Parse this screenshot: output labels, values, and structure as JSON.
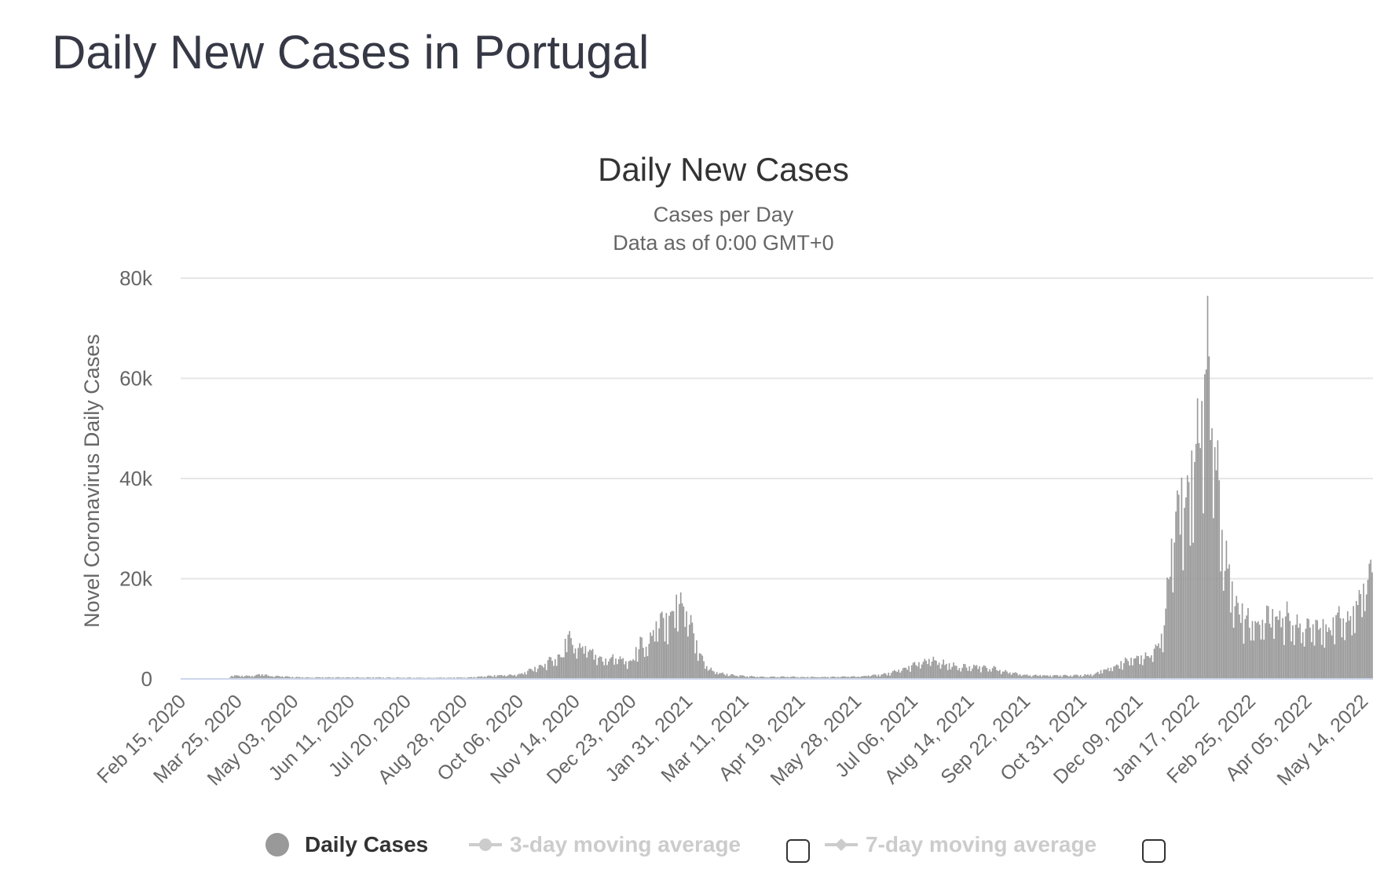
{
  "page": {
    "title": "Daily New Cases in Portugal"
  },
  "colors": {
    "bar": "#999999",
    "grid": "#e6e6e6",
    "axis_line": "#ccd6eb",
    "title_text": "#333333",
    "subtitle_text": "#666666",
    "legend_inactive": "#cccccc"
  },
  "legend": {
    "items": [
      {
        "label": "Daily Cases",
        "icon": "circle-marker-icon",
        "active": true
      },
      {
        "label": "3-day moving average",
        "icon": "line-marker-icon",
        "active": false
      },
      {
        "label": "7-day moving average",
        "icon": "line-diamond-marker-icon",
        "active": false
      }
    ]
  },
  "chart_data": {
    "type": "bar",
    "title": "Daily New Cases",
    "subtitle": [
      "Cases per Day",
      "Data as of 0:00 GMT+0"
    ],
    "xlabel": "",
    "ylabel": "Novel Coronavirus Daily Cases",
    "ylim": [
      0,
      80000
    ],
    "y_ticks": [
      0,
      20000,
      40000,
      60000,
      80000
    ],
    "y_tick_labels": [
      "0",
      "20k",
      "40k",
      "60k",
      "80k"
    ],
    "x_range": [
      "2020-02-15",
      "2022-05-21"
    ],
    "x_tick_labels": [
      "Feb 15, 2020",
      "Mar 25, 2020",
      "May 03, 2020",
      "Jun 11, 2020",
      "Jul 20, 2020",
      "Aug 28, 2020",
      "Oct 06, 2020",
      "Nov 14, 2020",
      "Dec 23, 2020",
      "Jan 31, 2021",
      "Mar 11, 2021",
      "Apr 19, 2021",
      "May 28, 2021",
      "Jul 06, 2021",
      "Aug 14, 2021",
      "Sep 22, 2021",
      "Oct 31, 2021",
      "Dec 09, 2021",
      "Jan 17, 2022",
      "Feb 25, 2022",
      "Apr 05, 2022",
      "May 14, 2022"
    ],
    "grid": true,
    "legend_position": "bottom",
    "series": [
      {
        "name": "Daily Cases",
        "points": [
          [
            "2020-03-20",
            600
          ],
          [
            "2020-03-25",
            700
          ],
          [
            "2020-03-30",
            600
          ],
          [
            "2020-04-05",
            700
          ],
          [
            "2020-04-10",
            1000
          ],
          [
            "2020-04-15",
            700
          ],
          [
            "2020-04-20",
            600
          ],
          [
            "2020-04-25",
            500
          ],
          [
            "2020-05-01",
            400
          ],
          [
            "2020-05-10",
            300
          ],
          [
            "2020-06-01",
            300
          ],
          [
            "2020-07-01",
            300
          ],
          [
            "2020-08-01",
            250
          ],
          [
            "2020-09-01",
            300
          ],
          [
            "2020-09-20",
            700
          ],
          [
            "2020-10-01",
            800
          ],
          [
            "2020-10-06",
            900
          ],
          [
            "2020-10-10",
            1300
          ],
          [
            "2020-10-15",
            2100
          ],
          [
            "2020-10-20",
            2600
          ],
          [
            "2020-10-25",
            3300
          ],
          [
            "2020-10-30",
            4000
          ],
          [
            "2020-11-05",
            5000
          ],
          [
            "2020-11-09",
            9000
          ],
          [
            "2020-11-14",
            6500
          ],
          [
            "2020-11-20",
            6500
          ],
          [
            "2020-11-26",
            5500
          ],
          [
            "2020-12-03",
            4000
          ],
          [
            "2020-12-10",
            4500
          ],
          [
            "2020-12-16",
            4000
          ],
          [
            "2020-12-23",
            3500
          ],
          [
            "2020-12-28",
            7000
          ],
          [
            "2021-01-03",
            7000
          ],
          [
            "2021-01-09",
            10500
          ],
          [
            "2021-01-15",
            12000
          ],
          [
            "2021-01-20",
            14500
          ],
          [
            "2021-01-24",
            15500
          ],
          [
            "2021-01-28",
            16000
          ],
          [
            "2021-02-01",
            12500
          ],
          [
            "2021-02-05",
            8000
          ],
          [
            "2021-02-10",
            4000
          ],
          [
            "2021-02-15",
            2000
          ],
          [
            "2021-02-22",
            1200
          ],
          [
            "2021-03-01",
            800
          ],
          [
            "2021-03-11",
            600
          ],
          [
            "2021-03-25",
            400
          ],
          [
            "2021-04-10",
            450
          ],
          [
            "2021-04-25",
            400
          ],
          [
            "2021-05-10",
            400
          ],
          [
            "2021-05-28",
            500
          ],
          [
            "2021-06-10",
            800
          ],
          [
            "2021-06-20",
            1200
          ],
          [
            "2021-06-28",
            2000
          ],
          [
            "2021-07-06",
            2700
          ],
          [
            "2021-07-14",
            3700
          ],
          [
            "2021-07-22",
            3700
          ],
          [
            "2021-07-30",
            2800
          ],
          [
            "2021-08-07",
            2500
          ],
          [
            "2021-08-14",
            2400
          ],
          [
            "2021-08-22",
            2500
          ],
          [
            "2021-08-30",
            2200
          ],
          [
            "2021-09-08",
            1500
          ],
          [
            "2021-09-22",
            800
          ],
          [
            "2021-10-05",
            700
          ],
          [
            "2021-10-20",
            700
          ],
          [
            "2021-10-31",
            700
          ],
          [
            "2021-11-08",
            1000
          ],
          [
            "2021-11-15",
            1800
          ],
          [
            "2021-11-22",
            2500
          ],
          [
            "2021-11-30",
            3500
          ],
          [
            "2021-12-09",
            4200
          ],
          [
            "2021-12-16",
            5000
          ],
          [
            "2021-12-22",
            6000
          ],
          [
            "2021-12-28",
            12000
          ],
          [
            "2021-12-31",
            28000
          ],
          [
            "2022-01-03",
            30000
          ],
          [
            "2022-01-06",
            38000
          ],
          [
            "2022-01-10",
            39000
          ],
          [
            "2022-01-14",
            40000
          ],
          [
            "2022-01-17",
            42000
          ],
          [
            "2022-01-20",
            55000
          ],
          [
            "2022-01-23",
            62000
          ],
          [
            "2022-01-26",
            65000
          ],
          [
            "2022-01-29",
            55000
          ],
          [
            "2022-02-01",
            45000
          ],
          [
            "2022-02-04",
            33000
          ],
          [
            "2022-02-07",
            25000
          ],
          [
            "2022-02-11",
            19000
          ],
          [
            "2022-02-15",
            15000
          ],
          [
            "2022-02-20",
            13000
          ],
          [
            "2022-02-25",
            11000
          ],
          [
            "2022-03-02",
            11000
          ],
          [
            "2022-03-08",
            13000
          ],
          [
            "2022-03-15",
            12500
          ],
          [
            "2022-03-22",
            12500
          ],
          [
            "2022-03-29",
            11500
          ],
          [
            "2022-04-05",
            10000
          ],
          [
            "2022-04-12",
            11000
          ],
          [
            "2022-04-19",
            10000
          ],
          [
            "2022-04-26",
            12000
          ],
          [
            "2022-05-03",
            12500
          ],
          [
            "2022-05-10",
            15000
          ],
          [
            "2022-05-16",
            20000
          ],
          [
            "2022-05-20",
            26000
          ]
        ]
      }
    ]
  }
}
